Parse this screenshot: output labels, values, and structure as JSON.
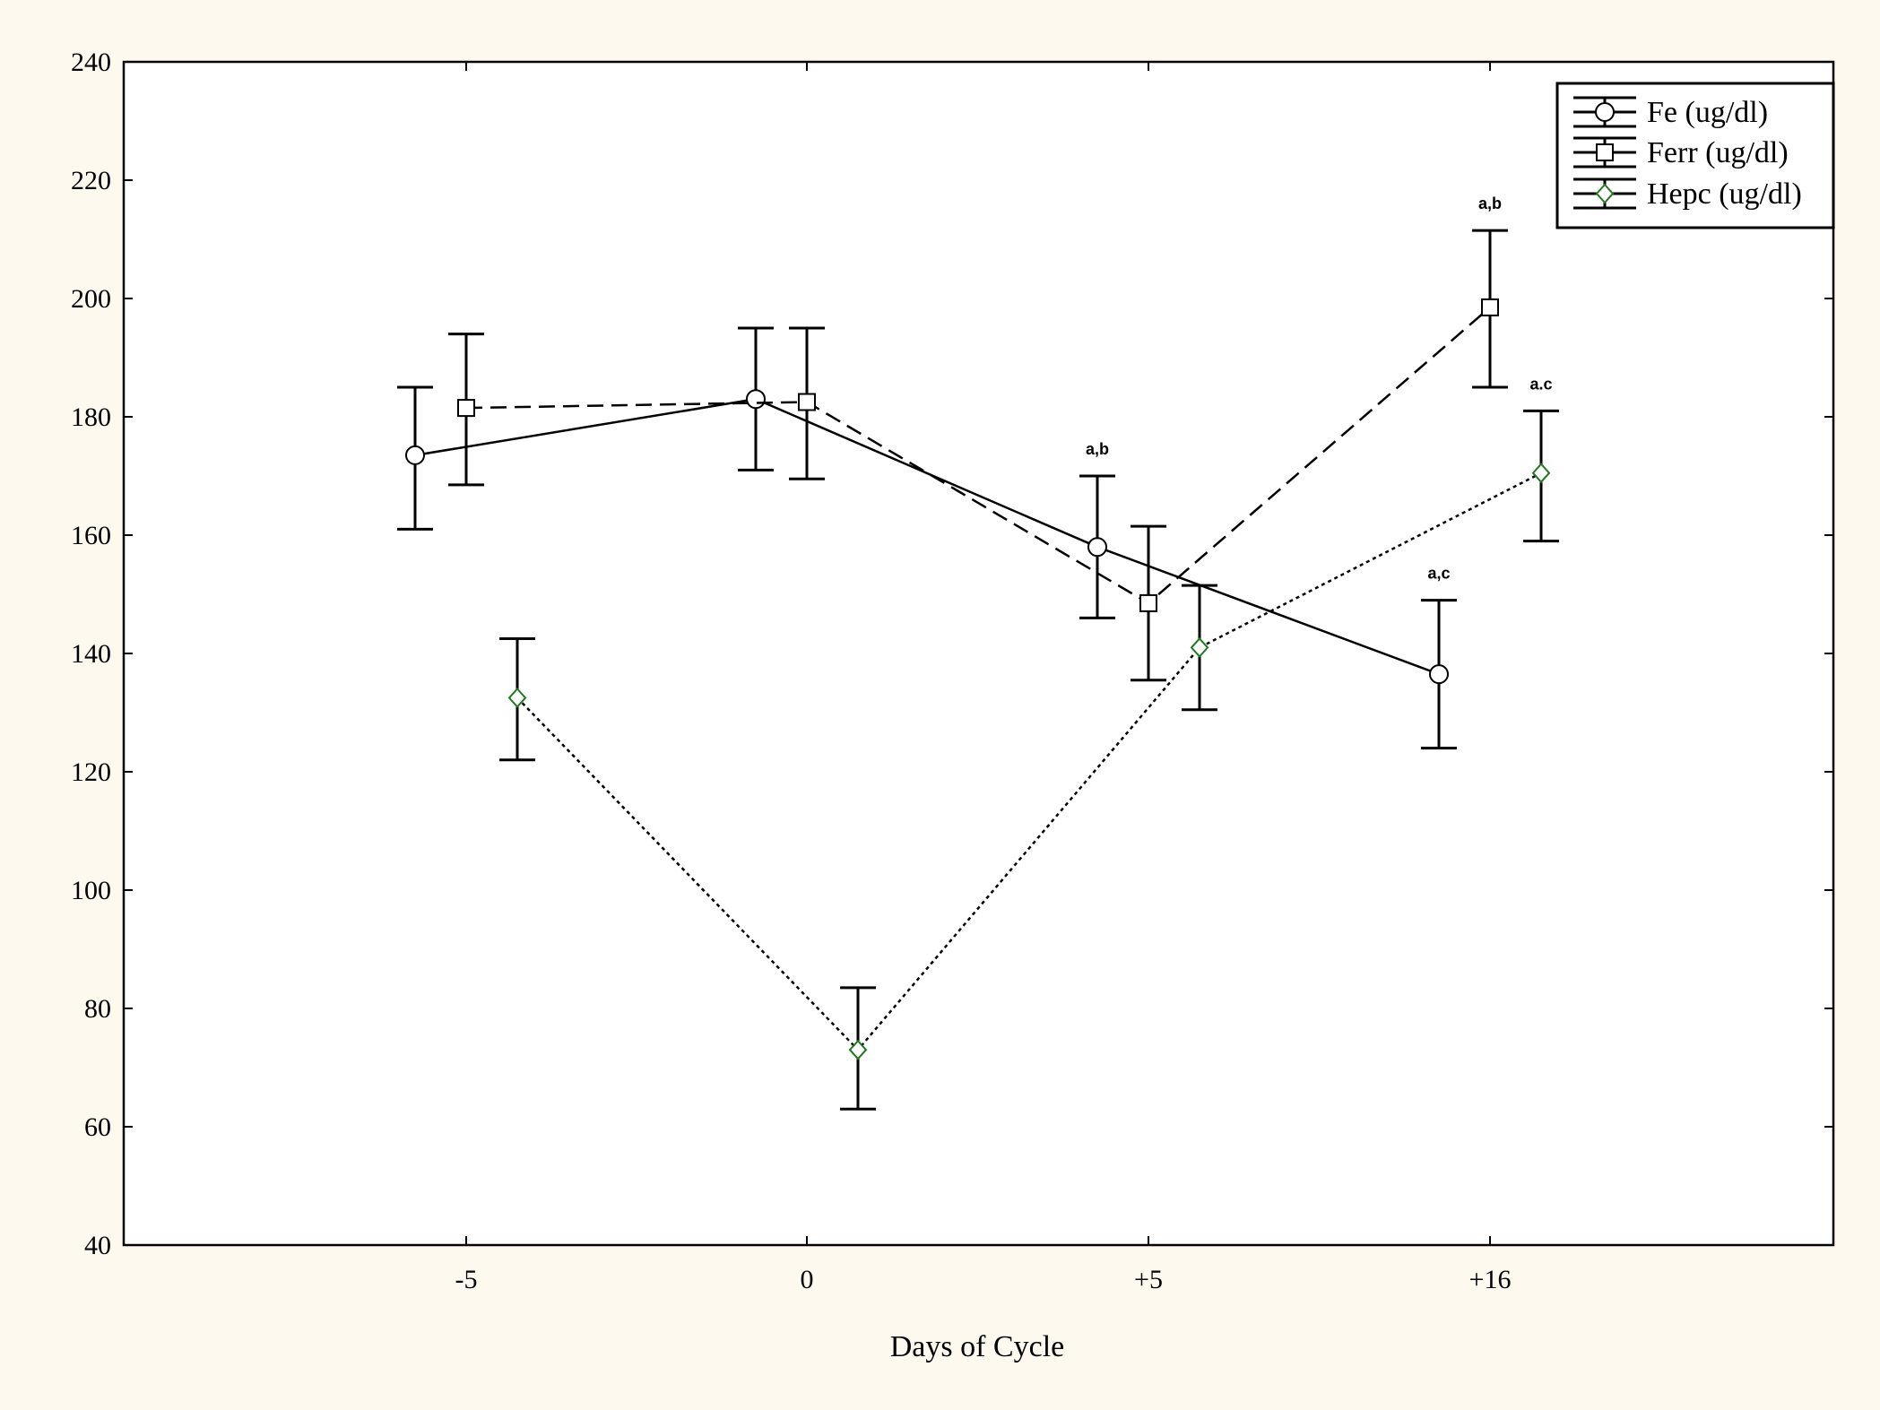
{
  "chart_data": {
    "type": "line",
    "title": "",
    "xlabel": "Days of Cycle",
    "ylabel": "",
    "categories": [
      "-5",
      "0",
      "+5",
      "+16"
    ],
    "ylim": [
      40,
      240
    ],
    "yticks": [
      40,
      60,
      80,
      100,
      120,
      140,
      160,
      180,
      200,
      220,
      240
    ],
    "grid": false,
    "legend_position": "top-right",
    "series": [
      {
        "name": "Fe (ug/dl)",
        "marker": "circle",
        "line_style": "solid",
        "x_offset": -0.15,
        "values": [
          173.5,
          183,
          158,
          136.5
        ],
        "error_low": [
          161,
          171,
          146,
          124
        ],
        "error_high": [
          185,
          195,
          170,
          149
        ],
        "annotations": [
          "",
          "",
          "a,b",
          "a,c"
        ]
      },
      {
        "name": "Ferr (ug/dl)",
        "marker": "square",
        "line_style": "dashed",
        "x_offset": 0,
        "values": [
          181.5,
          182.5,
          148.5,
          198.5
        ],
        "error_low": [
          168.5,
          169.5,
          135.5,
          185
        ],
        "error_high": [
          194,
          195,
          161.5,
          211.5
        ],
        "annotations": [
          "",
          "",
          "",
          "a,b"
        ]
      },
      {
        "name": "Hepc (ug/dl)",
        "marker": "diamond",
        "line_style": "dotted",
        "x_offset": 0.15,
        "values": [
          132.5,
          73,
          141,
          170.5
        ],
        "error_low": [
          122,
          63,
          130.5,
          159
        ],
        "error_high": [
          142.5,
          83.5,
          151.5,
          181
        ],
        "annotations": [
          "",
          "",
          "",
          "a.c"
        ]
      }
    ],
    "colors": {
      "page_background": "#fdf9ee",
      "plot_background": "#ffffff",
      "line": "#000000",
      "fe_marker_fill": "#ffffff",
      "ferr_marker_fill": "#ffffff",
      "hepc_marker_stroke": "#1f7a1f",
      "hepc_marker_fill": "#ffffff"
    }
  }
}
